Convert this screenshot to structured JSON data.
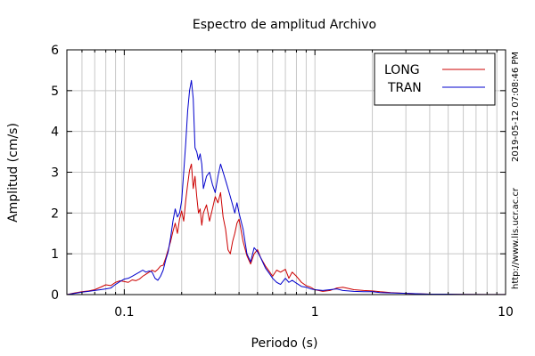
{
  "chart_data": {
    "type": "line",
    "title": "Espectro de amplitud Archivo",
    "xlabel": "Periodo (s)",
    "ylabel": "Amplitud (cm/s)",
    "x_scale": "log",
    "xlim": [
      0.05,
      10
    ],
    "ylim": [
      0,
      6
    ],
    "grid": true,
    "legend_position": "top-right",
    "x_tick_labels": [
      "0.1",
      "1",
      "10"
    ],
    "y_tick_labels": [
      "0",
      "1",
      "2",
      "3",
      "4",
      "5",
      "6"
    ],
    "side_text": [
      "2019-05-12 07:08:46 PM",
      "http://www.lis.ucr.ac.cr"
    ],
    "series": [
      {
        "name": "LONG",
        "color": "#cc0000",
        "points": [
          [
            0.05,
            0.0
          ],
          [
            0.055,
            0.04
          ],
          [
            0.06,
            0.07
          ],
          [
            0.065,
            0.09
          ],
          [
            0.07,
            0.12
          ],
          [
            0.075,
            0.18
          ],
          [
            0.08,
            0.24
          ],
          [
            0.085,
            0.22
          ],
          [
            0.09,
            0.3
          ],
          [
            0.095,
            0.34
          ],
          [
            0.1,
            0.32
          ],
          [
            0.105,
            0.3
          ],
          [
            0.11,
            0.36
          ],
          [
            0.115,
            0.34
          ],
          [
            0.12,
            0.38
          ],
          [
            0.125,
            0.45
          ],
          [
            0.13,
            0.5
          ],
          [
            0.135,
            0.55
          ],
          [
            0.14,
            0.6
          ],
          [
            0.145,
            0.56
          ],
          [
            0.15,
            0.62
          ],
          [
            0.155,
            0.7
          ],
          [
            0.16,
            0.72
          ],
          [
            0.165,
            0.9
          ],
          [
            0.17,
            1.1
          ],
          [
            0.175,
            1.3
          ],
          [
            0.18,
            1.55
          ],
          [
            0.185,
            1.75
          ],
          [
            0.19,
            1.5
          ],
          [
            0.195,
            1.85
          ],
          [
            0.2,
            2.05
          ],
          [
            0.205,
            1.8
          ],
          [
            0.21,
            2.3
          ],
          [
            0.215,
            2.7
          ],
          [
            0.22,
            3.05
          ],
          [
            0.225,
            3.2
          ],
          [
            0.23,
            2.6
          ],
          [
            0.235,
            2.9
          ],
          [
            0.24,
            2.4
          ],
          [
            0.245,
            2.0
          ],
          [
            0.25,
            2.1
          ],
          [
            0.255,
            1.7
          ],
          [
            0.26,
            2.0
          ],
          [
            0.27,
            2.2
          ],
          [
            0.28,
            1.8
          ],
          [
            0.29,
            2.1
          ],
          [
            0.3,
            2.4
          ],
          [
            0.31,
            2.25
          ],
          [
            0.32,
            2.5
          ],
          [
            0.33,
            1.9
          ],
          [
            0.34,
            1.6
          ],
          [
            0.35,
            1.1
          ],
          [
            0.36,
            1.0
          ],
          [
            0.37,
            1.3
          ],
          [
            0.38,
            1.5
          ],
          [
            0.39,
            1.75
          ],
          [
            0.4,
            1.85
          ],
          [
            0.42,
            1.3
          ],
          [
            0.44,
            0.95
          ],
          [
            0.46,
            0.75
          ],
          [
            0.48,
            1.0
          ],
          [
            0.5,
            1.1
          ],
          [
            0.52,
            0.9
          ],
          [
            0.55,
            0.7
          ],
          [
            0.58,
            0.55
          ],
          [
            0.6,
            0.45
          ],
          [
            0.63,
            0.6
          ],
          [
            0.66,
            0.55
          ],
          [
            0.7,
            0.62
          ],
          [
            0.73,
            0.4
          ],
          [
            0.76,
            0.55
          ],
          [
            0.8,
            0.45
          ],
          [
            0.85,
            0.3
          ],
          [
            0.9,
            0.22
          ],
          [
            0.95,
            0.18
          ],
          [
            1.0,
            0.12
          ],
          [
            1.1,
            0.08
          ],
          [
            1.2,
            0.1
          ],
          [
            1.3,
            0.16
          ],
          [
            1.4,
            0.18
          ],
          [
            1.5,
            0.15
          ],
          [
            1.6,
            0.12
          ],
          [
            1.8,
            0.1
          ],
          [
            2.0,
            0.09
          ],
          [
            2.2,
            0.07
          ],
          [
            2.5,
            0.05
          ],
          [
            3.0,
            0.03
          ],
          [
            3.5,
            0.02
          ],
          [
            4.0,
            0.01
          ],
          [
            5.0,
            0.01
          ],
          [
            6.0,
            0.005
          ],
          [
            8.0,
            0.003
          ],
          [
            10.0,
            0.002
          ]
        ]
      },
      {
        "name": "TRAN",
        "color": "#0000cc",
        "points": [
          [
            0.05,
            0.0
          ],
          [
            0.055,
            0.03
          ],
          [
            0.06,
            0.06
          ],
          [
            0.065,
            0.08
          ],
          [
            0.07,
            0.1
          ],
          [
            0.075,
            0.12
          ],
          [
            0.08,
            0.14
          ],
          [
            0.085,
            0.16
          ],
          [
            0.09,
            0.25
          ],
          [
            0.095,
            0.32
          ],
          [
            0.1,
            0.38
          ],
          [
            0.105,
            0.4
          ],
          [
            0.11,
            0.45
          ],
          [
            0.115,
            0.5
          ],
          [
            0.12,
            0.55
          ],
          [
            0.125,
            0.6
          ],
          [
            0.13,
            0.55
          ],
          [
            0.135,
            0.58
          ],
          [
            0.14,
            0.55
          ],
          [
            0.145,
            0.4
          ],
          [
            0.15,
            0.35
          ],
          [
            0.155,
            0.45
          ],
          [
            0.16,
            0.6
          ],
          [
            0.165,
            0.85
          ],
          [
            0.17,
            1.05
          ],
          [
            0.175,
            1.4
          ],
          [
            0.18,
            1.8
          ],
          [
            0.185,
            2.1
          ],
          [
            0.19,
            1.9
          ],
          [
            0.195,
            2.0
          ],
          [
            0.2,
            2.3
          ],
          [
            0.205,
            3.0
          ],
          [
            0.21,
            3.7
          ],
          [
            0.215,
            4.5
          ],
          [
            0.22,
            5.0
          ],
          [
            0.225,
            5.25
          ],
          [
            0.23,
            4.8
          ],
          [
            0.235,
            3.6
          ],
          [
            0.24,
            3.5
          ],
          [
            0.245,
            3.3
          ],
          [
            0.25,
            3.45
          ],
          [
            0.255,
            3.2
          ],
          [
            0.26,
            2.6
          ],
          [
            0.27,
            2.9
          ],
          [
            0.28,
            3.0
          ],
          [
            0.29,
            2.7
          ],
          [
            0.3,
            2.5
          ],
          [
            0.31,
            2.9
          ],
          [
            0.32,
            3.2
          ],
          [
            0.33,
            3.0
          ],
          [
            0.34,
            2.8
          ],
          [
            0.35,
            2.6
          ],
          [
            0.36,
            2.4
          ],
          [
            0.37,
            2.2
          ],
          [
            0.38,
            2.0
          ],
          [
            0.39,
            2.25
          ],
          [
            0.4,
            2.0
          ],
          [
            0.42,
            1.6
          ],
          [
            0.44,
            1.0
          ],
          [
            0.46,
            0.8
          ],
          [
            0.48,
            1.15
          ],
          [
            0.5,
            1.05
          ],
          [
            0.52,
            0.9
          ],
          [
            0.55,
            0.65
          ],
          [
            0.58,
            0.5
          ],
          [
            0.6,
            0.4
          ],
          [
            0.63,
            0.3
          ],
          [
            0.66,
            0.25
          ],
          [
            0.7,
            0.4
          ],
          [
            0.73,
            0.3
          ],
          [
            0.76,
            0.35
          ],
          [
            0.8,
            0.28
          ],
          [
            0.85,
            0.2
          ],
          [
            0.9,
            0.18
          ],
          [
            0.95,
            0.14
          ],
          [
            1.0,
            0.12
          ],
          [
            1.1,
            0.1
          ],
          [
            1.2,
            0.12
          ],
          [
            1.3,
            0.14
          ],
          [
            1.4,
            0.1
          ],
          [
            1.5,
            0.09
          ],
          [
            1.6,
            0.08
          ],
          [
            1.8,
            0.07
          ],
          [
            2.0,
            0.07
          ],
          [
            2.2,
            0.05
          ],
          [
            2.5,
            0.04
          ],
          [
            3.0,
            0.03
          ],
          [
            3.5,
            0.02
          ],
          [
            4.0,
            0.01
          ],
          [
            5.0,
            0.01
          ],
          [
            6.0,
            0.005
          ],
          [
            8.0,
            0.003
          ],
          [
            10.0,
            0.002
          ]
        ]
      }
    ]
  }
}
